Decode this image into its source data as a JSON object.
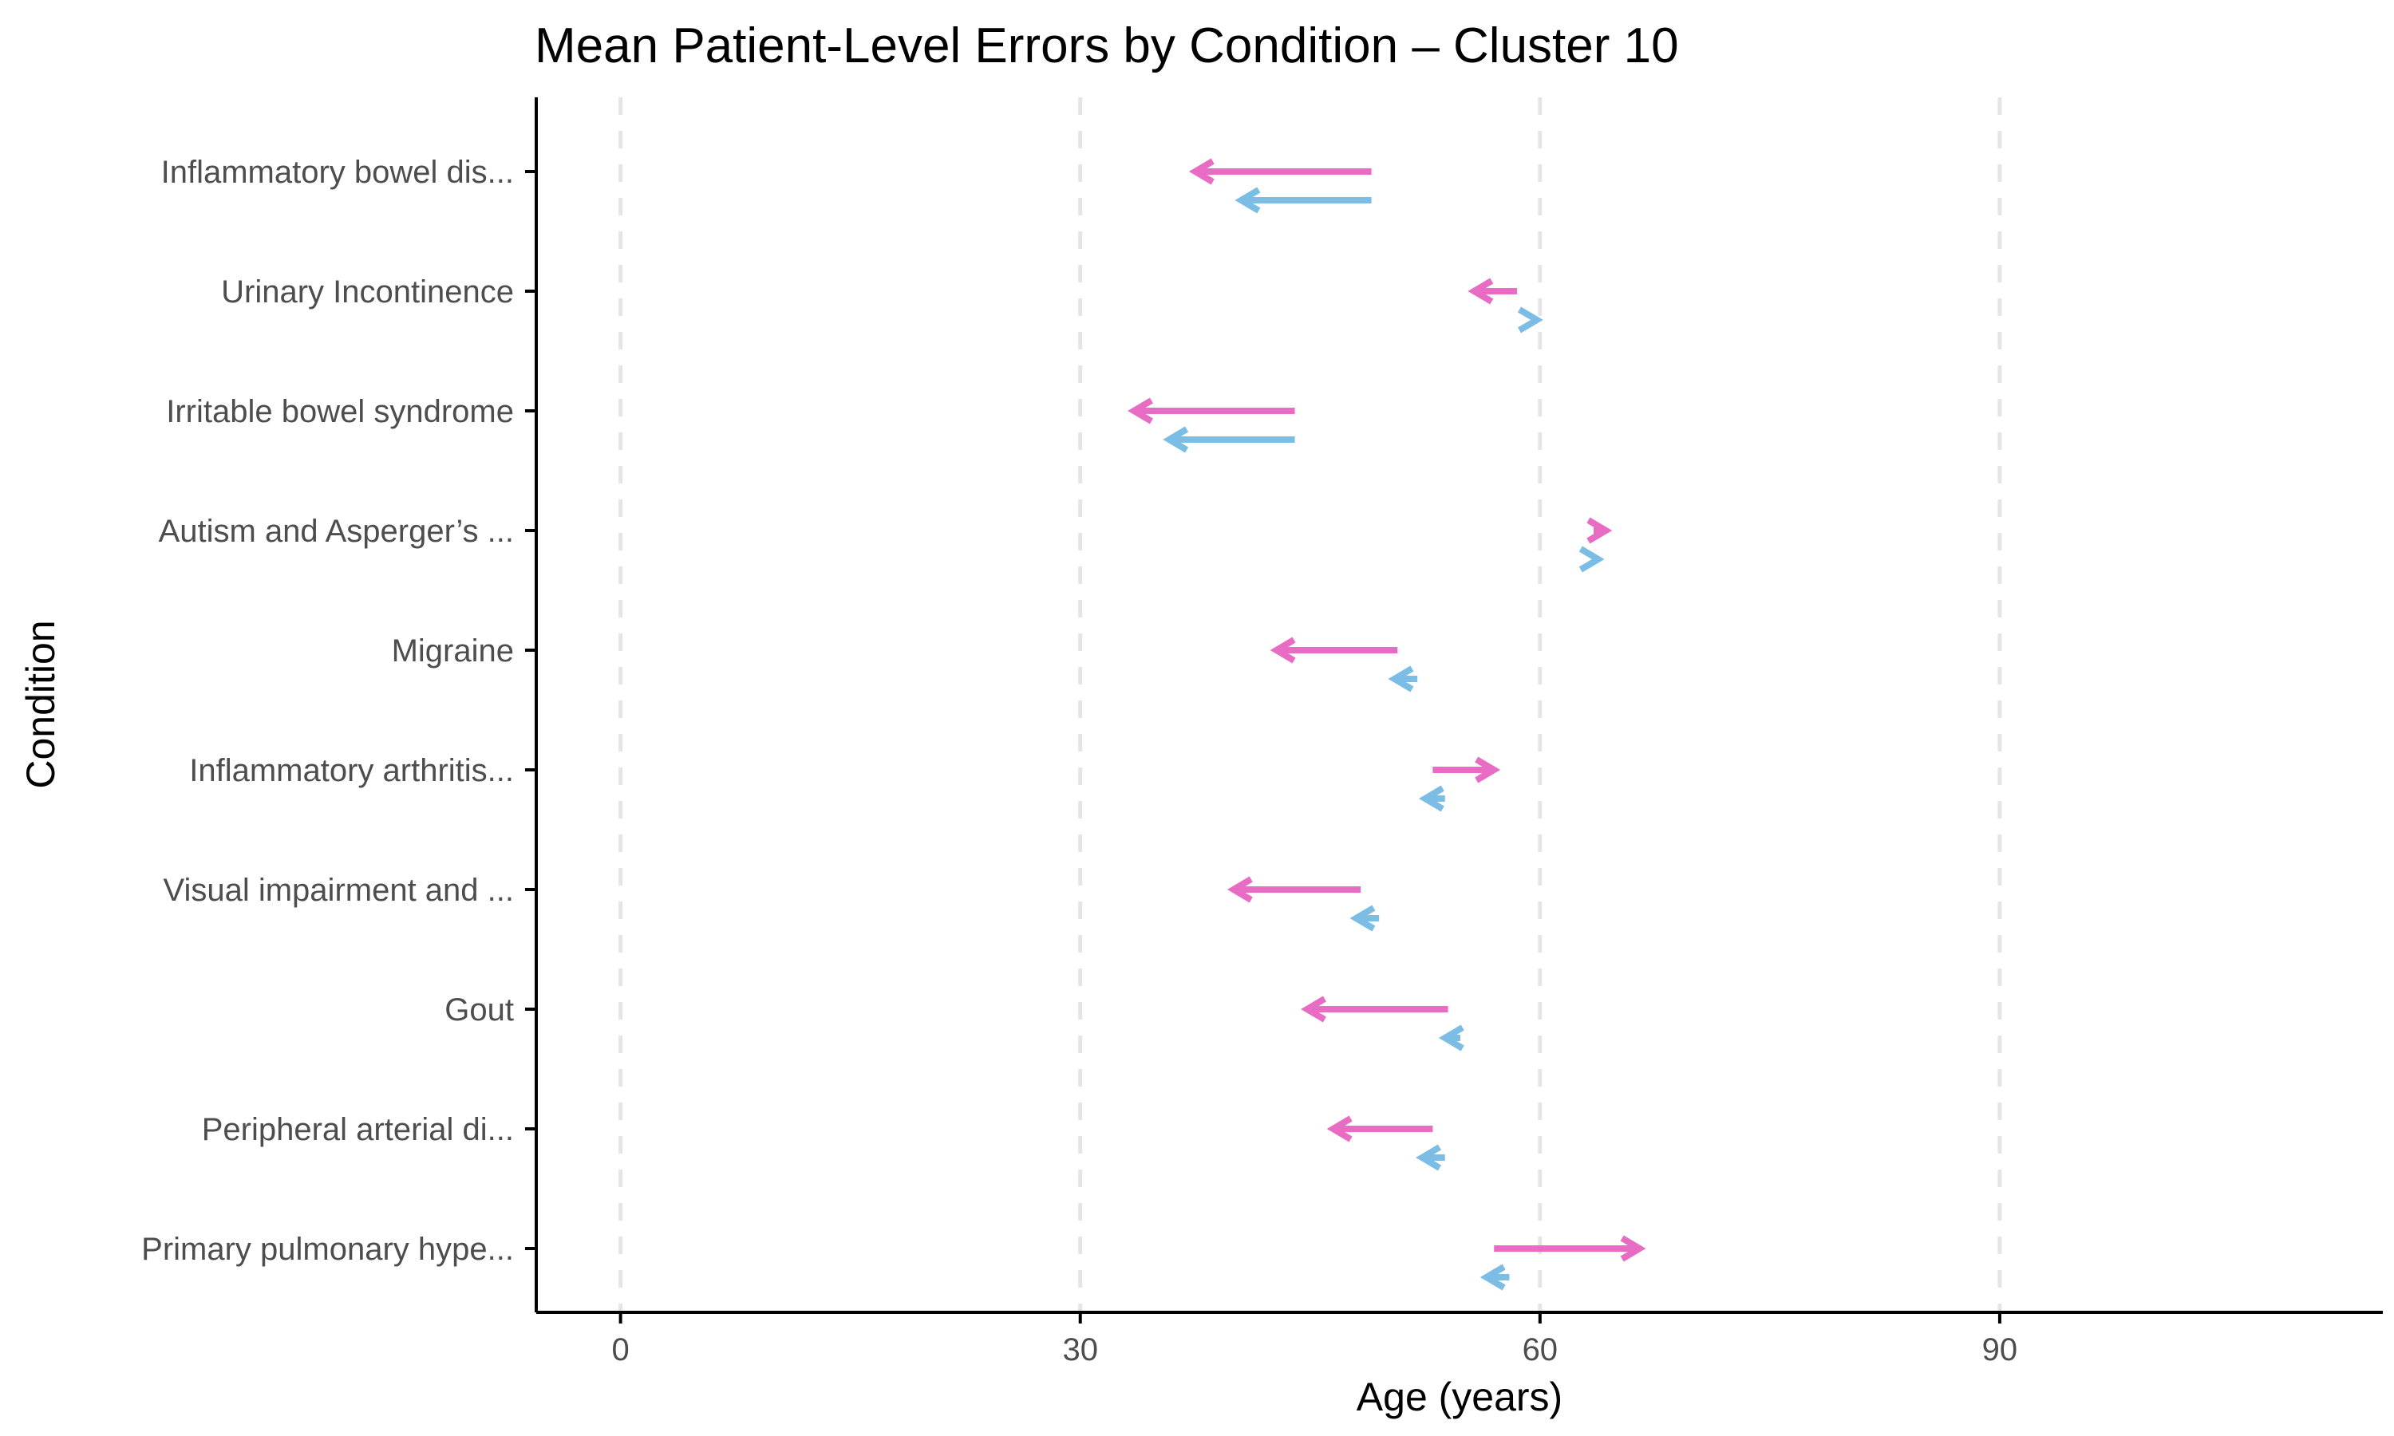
{
  "chart_data": {
    "type": "arrow",
    "title": "Mean Patient-Level Errors by Condition – Cluster 10",
    "xlabel": "Age (years)",
    "ylabel": "Condition",
    "xlim": [
      -5.5,
      115
    ],
    "xticks": [
      0,
      30,
      60,
      90
    ],
    "grid": "vertical dashed at x ticks",
    "legend": "none",
    "categories": [
      "Inflammatory bowel dis...",
      "Urinary Incontinence",
      "Irritable bowel syndrome",
      "Autism and Asperger’s ...",
      "Migraine",
      "Inflammatory arthritis...",
      "Visual impairment and ...",
      "Gout",
      "Peripheral arterial di...",
      "Primary pulmonary hype..."
    ],
    "series": [
      {
        "color": "#e86cc4",
        "start": [
          49.0,
          58.5,
          44.0,
          63.5,
          50.7,
          53.0,
          48.3,
          54.0,
          53.0,
          57.0
        ],
        "end": [
          37.5,
          55.7,
          33.5,
          64.3,
          42.8,
          57.0,
          40.0,
          44.8,
          46.5,
          66.5
        ]
      },
      {
        "color": "#7bbde4",
        "start": [
          49.0,
          59.5,
          44.0,
          63.5,
          52.0,
          53.8,
          49.5,
          54.8,
          53.8,
          58.0
        ],
        "end": [
          40.5,
          59.8,
          35.8,
          63.8,
          50.5,
          52.5,
          48.0,
          53.8,
          52.3,
          56.5
        ]
      }
    ]
  }
}
